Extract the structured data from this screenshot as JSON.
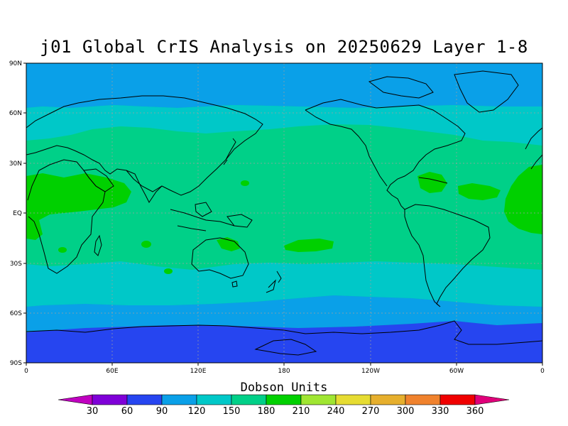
{
  "title": "j01 Global CrIS Analysis on 20250629 Layer 1-8",
  "lat_labels": [
    "90N",
    "60N",
    "30N",
    "EQ",
    "30S",
    "60S",
    "90S"
  ],
  "lon_labels": [
    "0",
    "60E",
    "120E",
    "180",
    "120W",
    "60W",
    "0"
  ],
  "colorbar": {
    "title": "Dobson Units",
    "levels": [
      "30",
      "60",
      "90",
      "120",
      "150",
      "180",
      "210",
      "240",
      "270",
      "300",
      "330",
      "360"
    ],
    "colors": [
      "#c000c0",
      "#7f00d8",
      "#2645f0",
      "#0aa0e8",
      "#00c8c8",
      "#00d088",
      "#00d000",
      "#a0e632",
      "#e6dc32",
      "#e6af2d",
      "#f0822d",
      "#f00000",
      "#e0007a"
    ]
  },
  "map": {
    "projection": "cylindrical equidistant",
    "colors": {
      "band_90": "#0aa0e8",
      "band_120": "#00c8c8",
      "band_150": "#00d088",
      "band_180": "#00d000",
      "band_60": "#2645f0",
      "coastline": "#000000",
      "grid": "#a0a0a0"
    }
  }
}
